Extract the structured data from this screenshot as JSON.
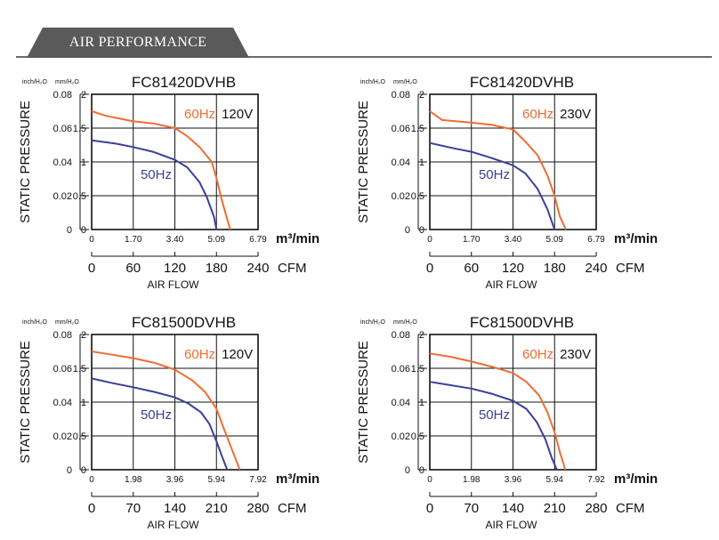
{
  "header": {
    "title": "AIR PERFORMANCE"
  },
  "colors": {
    "hz60": "#ee6d33",
    "hz50": "#3a3f9a",
    "frame": "#111111",
    "header_bg": "#5a5a5a"
  },
  "chart_data": [
    {
      "type": "line",
      "title": "FC81420DVHB",
      "voltage": "120V",
      "ylabel": "STATIC PRESSURE",
      "xlabel": "AIR FLOW",
      "y_unit_inch": "inch/H₂O",
      "y_unit_mm": "mm/H₂O",
      "y_ticks_inch": [
        "0.08",
        "0.06",
        "0.04",
        "0.02",
        "0"
      ],
      "y_ticks_mm": [
        "2",
        "1.5",
        "1",
        "0.5",
        "0"
      ],
      "x_unit_m3": "m³/min",
      "x_unit_cfm": "CFM",
      "x_ticks_m3": [
        "0",
        "1.70",
        "3.40",
        "5.09",
        "6.79"
      ],
      "x_ticks_cfm": [
        "0",
        "60",
        "120",
        "180",
        "240"
      ],
      "xlim": [
        0,
        6.79
      ],
      "ylim": [
        0,
        2
      ],
      "series": [
        {
          "name": "60Hz",
          "x": [
            0,
            0.6,
            1.7,
            2.5,
            3.4,
            3.9,
            4.4,
            4.9,
            5.1,
            5.3,
            5.65
          ],
          "y": [
            1.75,
            1.68,
            1.6,
            1.57,
            1.5,
            1.38,
            1.22,
            1.0,
            0.75,
            0.45,
            0
          ]
        },
        {
          "name": "50Hz",
          "x": [
            0,
            1.0,
            1.7,
            2.5,
            3.4,
            3.9,
            4.4,
            4.7,
            5.0,
            5.09
          ],
          "y": [
            1.32,
            1.27,
            1.22,
            1.15,
            1.03,
            0.92,
            0.7,
            0.48,
            0.18,
            0
          ]
        }
      ]
    },
    {
      "type": "line",
      "title": "FC81420DVHB",
      "voltage": "230V",
      "ylabel": "STATIC PRESSURE",
      "xlabel": "AIR FLOW",
      "y_unit_inch": "inch/H₂O",
      "y_unit_mm": "mm/H₂O",
      "y_ticks_inch": [
        "0.08",
        "0.06",
        "0.04",
        "0.02",
        "0"
      ],
      "y_ticks_mm": [
        "2",
        "1.5",
        "1",
        "0.5",
        "0"
      ],
      "x_unit_m3": "m³/min",
      "x_unit_cfm": "CFM",
      "x_ticks_m3": [
        "0",
        "1.70",
        "3.40",
        "5.09",
        "6.79"
      ],
      "x_ticks_cfm": [
        "0",
        "60",
        "120",
        "180",
        "240"
      ],
      "xlim": [
        0,
        6.79
      ],
      "ylim": [
        0,
        2
      ],
      "series": [
        {
          "name": "60Hz",
          "x": [
            0,
            0.5,
            1.7,
            2.5,
            3.4,
            3.9,
            4.4,
            4.8,
            5.09,
            5.3,
            5.55
          ],
          "y": [
            1.75,
            1.62,
            1.58,
            1.55,
            1.48,
            1.3,
            1.1,
            0.8,
            0.5,
            0.2,
            0
          ]
        },
        {
          "name": "50Hz",
          "x": [
            0,
            1.0,
            1.7,
            2.5,
            3.4,
            3.9,
            4.4,
            4.8,
            5.09
          ],
          "y": [
            1.28,
            1.2,
            1.15,
            1.06,
            0.95,
            0.83,
            0.6,
            0.3,
            0
          ]
        }
      ]
    },
    {
      "type": "line",
      "title": "FC81500DVHB",
      "voltage": "120V",
      "ylabel": "STATIC PRESSURE",
      "xlabel": "AIR FLOW",
      "y_unit_inch": "inch/H₂O",
      "y_unit_mm": "mm/H₂O",
      "y_ticks_inch": [
        "0.08",
        "0.06",
        "0.04",
        "0.02",
        "0"
      ],
      "y_ticks_mm": [
        "2",
        "1.5",
        "1",
        "0.5",
        "0"
      ],
      "x_unit_m3": "m³/min",
      "x_unit_cfm": "CFM",
      "x_ticks_m3": [
        "0",
        "1.98",
        "3.96",
        "5.94",
        "7.92"
      ],
      "x_ticks_cfm": [
        "0",
        "70",
        "140",
        "210",
        "280"
      ],
      "xlim": [
        0,
        7.92
      ],
      "ylim": [
        0,
        2
      ],
      "series": [
        {
          "name": "60Hz",
          "x": [
            0,
            1.0,
            1.98,
            3.0,
            3.96,
            4.8,
            5.4,
            5.94,
            6.3,
            6.7,
            7.05
          ],
          "y": [
            1.75,
            1.7,
            1.65,
            1.58,
            1.48,
            1.32,
            1.15,
            0.9,
            0.6,
            0.28,
            0
          ]
        },
        {
          "name": "50Hz",
          "x": [
            0,
            1.0,
            1.98,
            3.0,
            3.96,
            4.6,
            5.2,
            5.6,
            5.94,
            6.2,
            6.45
          ],
          "y": [
            1.35,
            1.28,
            1.22,
            1.15,
            1.07,
            0.98,
            0.85,
            0.68,
            0.42,
            0.2,
            0
          ]
        }
      ]
    },
    {
      "type": "line",
      "title": "FC81500DVHB",
      "voltage": "230V",
      "ylabel": "STATIC PRESSURE",
      "xlabel": "AIR FLOW",
      "y_unit_inch": "inch/H₂O",
      "y_unit_mm": "mm/H₂O",
      "y_ticks_inch": [
        "0.08",
        "0.06",
        "0.04",
        "0.02",
        "0"
      ],
      "y_ticks_mm": [
        "2",
        "1.5",
        "1",
        "0.5",
        "0"
      ],
      "x_unit_m3": "m³/min",
      "x_unit_cfm": "CFM",
      "x_ticks_m3": [
        "0",
        "1.98",
        "3.96",
        "5.94",
        "7.92"
      ],
      "x_ticks_cfm": [
        "0",
        "70",
        "140",
        "210",
        "280"
      ],
      "xlim": [
        0,
        7.92
      ],
      "ylim": [
        0,
        2
      ],
      "series": [
        {
          "name": "60Hz",
          "x": [
            0,
            1.0,
            1.98,
            3.0,
            3.96,
            4.6,
            5.2,
            5.6,
            5.94,
            6.2,
            6.45
          ],
          "y": [
            1.72,
            1.67,
            1.6,
            1.52,
            1.43,
            1.3,
            1.1,
            0.85,
            0.55,
            0.25,
            0
          ]
        },
        {
          "name": "50Hz",
          "x": [
            0,
            1.0,
            1.98,
            3.0,
            3.96,
            4.6,
            5.1,
            5.5,
            5.8,
            6.05
          ],
          "y": [
            1.3,
            1.25,
            1.2,
            1.12,
            1.02,
            0.9,
            0.7,
            0.45,
            0.18,
            0
          ]
        }
      ]
    }
  ]
}
